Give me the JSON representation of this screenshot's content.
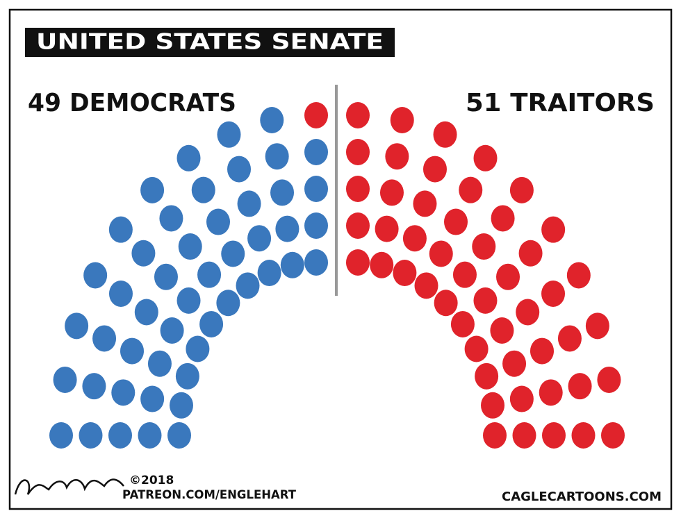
{
  "title": "UNITED STATES SENATE",
  "left_label": "49 DEMOCRATS",
  "right_label": "51 TRAITORS",
  "copyright": "©2018",
  "credit": "PATREON.COM/ENGLEHART",
  "syndicate": "CAGLECARTOONS.COM"
}
